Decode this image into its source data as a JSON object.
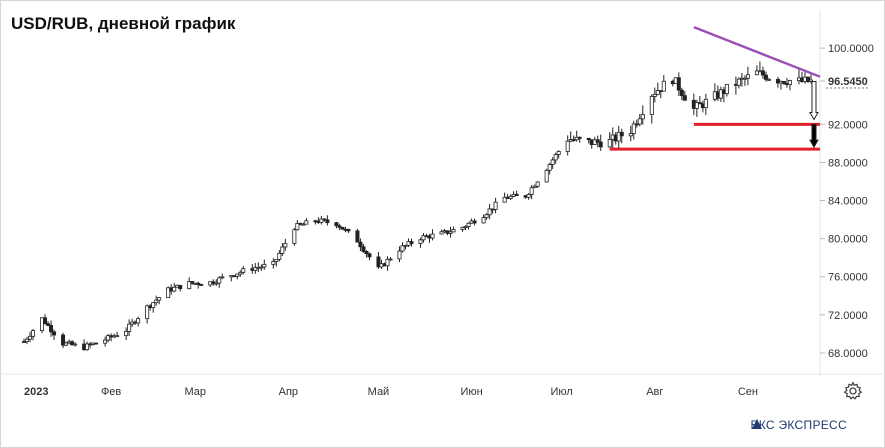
{
  "title": "USD/RUB, дневной график",
  "brand": "БКС ЭКСПРЕСС",
  "colors": {
    "up": "#26a69a",
    "down": "#ef5350",
    "candle_body": "#ffffff",
    "candle_outline": "#222222",
    "resistance": "#9b4fb6",
    "support": "#e0202a",
    "grid": "#f0f0f0",
    "axis_text": "#333333"
  },
  "chart_data": {
    "type": "candlestick",
    "y_axis": {
      "ticks": [
        "100.0000",
        "96.5450",
        "92.0000",
        "88.0000",
        "84.0000",
        "80.0000",
        "76.0000",
        "72.0000",
        "68.0000"
      ],
      "tick_values": [
        100,
        96.545,
        92,
        88,
        84,
        80,
        76,
        72,
        68
      ],
      "ylim": [
        66.0,
        104.0
      ],
      "last_price": "96.5450"
    },
    "x_axis": {
      "labels": [
        "2023",
        "Фев",
        "Мар",
        "Апр",
        "Май",
        "Июн",
        "Июл",
        "Авг",
        "Сен"
      ],
      "range": [
        "2023-01-01",
        "2023-09-25"
      ]
    },
    "series": [
      {
        "values_date_close": [
          [
            "2023-01-03",
            69.2
          ],
          [
            "2023-01-09",
            71.6
          ],
          [
            "2023-01-16",
            69.0
          ],
          [
            "2023-01-23",
            68.6
          ],
          [
            "2023-01-30",
            69.4
          ],
          [
            "2023-02-06",
            70.4
          ],
          [
            "2023-02-13",
            72.8
          ],
          [
            "2023-02-20",
            74.6
          ],
          [
            "2023-02-27",
            75.3
          ],
          [
            "2023-03-06",
            75.4
          ],
          [
            "2023-03-13",
            76.2
          ],
          [
            "2023-03-20",
            76.9
          ],
          [
            "2023-03-27",
            77.3
          ],
          [
            "2023-04-03",
            81.2
          ],
          [
            "2023-04-10",
            81.9
          ],
          [
            "2023-04-17",
            81.6
          ],
          [
            "2023-04-24",
            79.8
          ],
          [
            "2023-05-01",
            76.8
          ],
          [
            "2023-05-08",
            78.9
          ],
          [
            "2023-05-15",
            80.1
          ],
          [
            "2023-05-22",
            80.5
          ],
          [
            "2023-05-29",
            81.2
          ],
          [
            "2023-06-05",
            82.5
          ],
          [
            "2023-06-12",
            84.3
          ],
          [
            "2023-06-19",
            84.5
          ],
          [
            "2023-06-26",
            87.4
          ],
          [
            "2023-07-03",
            90.5
          ],
          [
            "2023-07-10",
            90.1
          ],
          [
            "2023-07-17",
            90.2
          ],
          [
            "2023-07-24",
            91.4
          ],
          [
            "2023-07-31",
            95.2
          ],
          [
            "2023-08-07",
            96.8
          ],
          [
            "2023-08-14",
            93.6
          ],
          [
            "2023-08-21",
            94.9
          ],
          [
            "2023-08-28",
            96.3
          ],
          [
            "2023-09-04",
            97.4
          ],
          [
            "2023-09-11",
            96.7
          ],
          [
            "2023-09-18",
            96.5
          ]
        ]
      }
    ],
    "annotations": [
      {
        "type": "trendline",
        "color": "resistance",
        "from": [
          "2023-08-14",
          102.2
        ],
        "to": [
          "2023-09-25",
          97.0
        ]
      },
      {
        "type": "horizontal",
        "color": "support",
        "from": [
          "2023-08-14",
          92.0
        ],
        "to": [
          "2023-09-25",
          92.0
        ]
      },
      {
        "type": "horizontal",
        "color": "support",
        "from": [
          "2023-07-17",
          89.4
        ],
        "to": [
          "2023-09-25",
          89.4
        ]
      },
      {
        "type": "arrow",
        "color": "#ffffff",
        "from": [
          "2023-09-23",
          96.5
        ],
        "to": [
          "2023-09-23",
          92.5
        ]
      },
      {
        "type": "arrow",
        "color": "#000000",
        "from": [
          "2023-09-23",
          92.0
        ],
        "to": [
          "2023-09-23",
          89.6
        ]
      }
    ],
    "grid": false
  }
}
